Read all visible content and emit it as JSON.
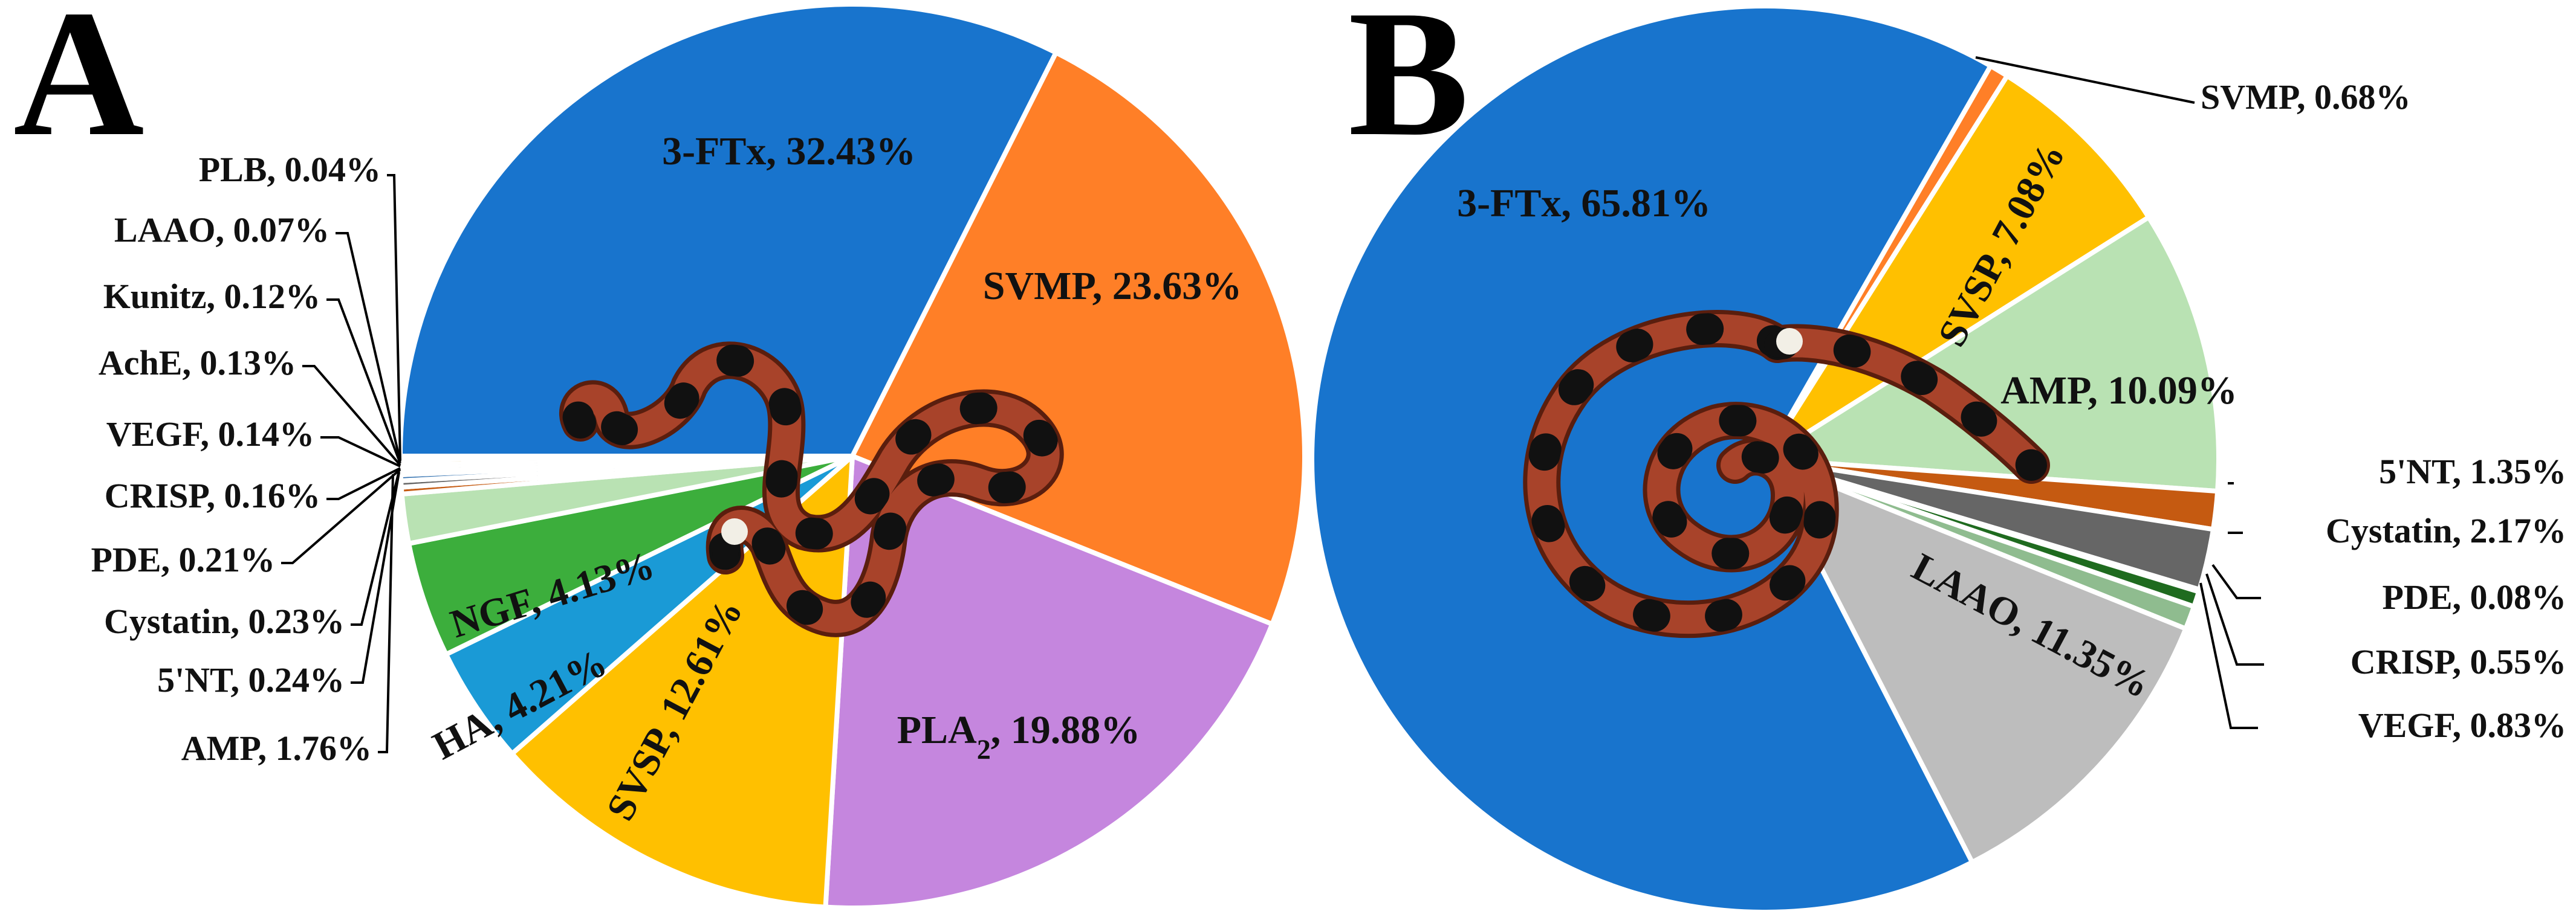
{
  "panels": [
    {
      "letter": "A"
    },
    {
      "letter": "B"
    }
  ],
  "chart_data": [
    {
      "type": "pie",
      "panel": "A",
      "slices": [
        {
          "name": "3-FTx",
          "value": 32.43,
          "label": "3-FTx, 32.43%",
          "color": "#1874cd"
        },
        {
          "name": "SVMP",
          "value": 23.63,
          "label": "SVMP, 23.63%",
          "color": "#ff7f27"
        },
        {
          "name": "PLA2",
          "value": 19.88,
          "label": "PLA2, 19.88%",
          "color": "#c586de"
        },
        {
          "name": "SVSP",
          "value": 12.61,
          "label": "SVSP, 12.61%",
          "color": "#ffc000"
        },
        {
          "name": "HA",
          "value": 4.21,
          "label": "HA, 4.21%",
          "color": "#1a9ad6"
        },
        {
          "name": "NGF",
          "value": 4.13,
          "label": "NGF, 4.13%",
          "color": "#3cae3c"
        },
        {
          "name": "AMP",
          "value": 1.76,
          "label": "AMP, 1.76%",
          "color": "#b9e2b3"
        },
        {
          "name": "5'NT",
          "value": 0.24,
          "label": "5'NT, 0.24%",
          "color": "#c55a11"
        },
        {
          "name": "Cystatin",
          "value": 0.23,
          "label": "Cystatin, 0.23%",
          "color": "#666666"
        },
        {
          "name": "PDE",
          "value": 0.21,
          "label": "PDE, 0.21%",
          "color": "#2f6faf"
        },
        {
          "name": "CRISP",
          "value": 0.16,
          "label": "CRISP, 0.16%",
          "color": "#1f6b1f"
        },
        {
          "name": "VEGF",
          "value": 0.14,
          "label": "VEGF, 0.14%",
          "color": "#8fbc8f"
        },
        {
          "name": "AchE",
          "value": 0.13,
          "label": "AchE, 0.13%",
          "color": "#a9a9a9"
        },
        {
          "name": "Kunitz",
          "value": 0.12,
          "label": "Kunitz, 0.12%",
          "color": "#d4a017"
        },
        {
          "name": "LAAO",
          "value": 0.07,
          "label": "LAAO, 0.07%",
          "color": "#bdbdbd"
        },
        {
          "name": "PLB",
          "value": 0.04,
          "label": "PLB, 0.04%",
          "color": "#9e480e"
        }
      ]
    },
    {
      "type": "pie",
      "panel": "B",
      "slices": [
        {
          "name": "SVMP",
          "value": 0.68,
          "label": "SVMP, 0.68%",
          "color": "#ff7f27"
        },
        {
          "name": "SVSP",
          "value": 7.08,
          "label": "SVSP, 7.08%",
          "color": "#ffc000"
        },
        {
          "name": "AMP",
          "value": 10.09,
          "label": "AMP, 10.09%",
          "color": "#b9e2b3"
        },
        {
          "name": "5'NT",
          "value": 1.35,
          "label": "5'NT, 1.35%",
          "color": "#c55a11"
        },
        {
          "name": "Cystatin",
          "value": 2.17,
          "label": "Cystatin, 2.17%",
          "color": "#666666"
        },
        {
          "name": "PDE",
          "value": 0.08,
          "label": "PDE, 0.08%",
          "color": "#2f6faf"
        },
        {
          "name": "CRISP",
          "value": 0.55,
          "label": "CRISP, 0.55%",
          "color": "#1f6b1f"
        },
        {
          "name": "VEGF",
          "value": 0.83,
          "label": "VEGF, 0.83%",
          "color": "#8fbc8f"
        },
        {
          "name": "LAAO",
          "value": 11.35,
          "label": "LAAO, 11.35%",
          "color": "#bdbdbd"
        },
        {
          "name": "3-FTx",
          "value": 65.81,
          "label": "3-FTx, 65.81%",
          "color": "#1874cd"
        }
      ]
    }
  ]
}
